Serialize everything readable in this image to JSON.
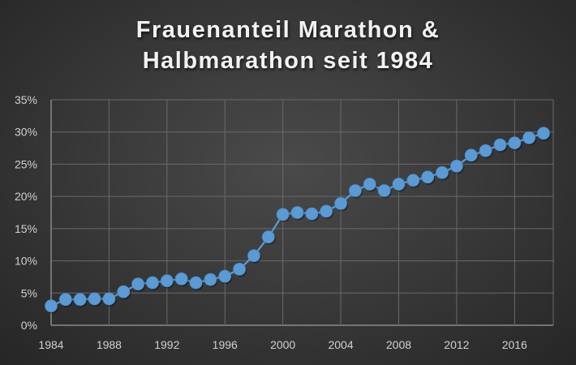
{
  "chart_data": {
    "type": "line",
    "title": "Frauenanteil Marathon & Halbmarathon seit 1984",
    "title_lines": [
      "Frauenanteil Marathon &",
      "Halbmarathon seit 1984"
    ],
    "xlabel": "",
    "ylabel": "",
    "ylim": [
      0,
      35
    ],
    "y_ticks": [
      "0%",
      "5%",
      "10%",
      "15%",
      "20%",
      "25%",
      "30%",
      "35%"
    ],
    "x_ticks": [
      "1984",
      "1988",
      "1992",
      "1996",
      "2000",
      "2004",
      "2008",
      "2012",
      "2016"
    ],
    "grid": true,
    "legend": "none",
    "series_color": "#5b9bd5",
    "x": [
      1984,
      1985,
      1986,
      1987,
      1988,
      1989,
      1990,
      1991,
      1992,
      1993,
      1994,
      1995,
      1996,
      1997,
      1998,
      1999,
      2000,
      2001,
      2002,
      2003,
      2004,
      2005,
      2006,
      2007,
      2008,
      2009,
      2010,
      2011,
      2012,
      2013,
      2014,
      2015,
      2016,
      2017,
      2018
    ],
    "series": [
      {
        "name": "Frauenanteil",
        "values": [
          3.0,
          4.0,
          4.0,
          4.1,
          4.1,
          5.2,
          6.4,
          6.6,
          6.9,
          7.2,
          6.6,
          7.1,
          7.6,
          8.7,
          10.8,
          13.7,
          17.2,
          17.5,
          17.3,
          17.7,
          18.9,
          20.9,
          21.9,
          20.9,
          21.9,
          22.5,
          23.0,
          23.7,
          24.7,
          26.4,
          27.1,
          28.0,
          28.3,
          29.1,
          29.8
        ]
      }
    ]
  }
}
